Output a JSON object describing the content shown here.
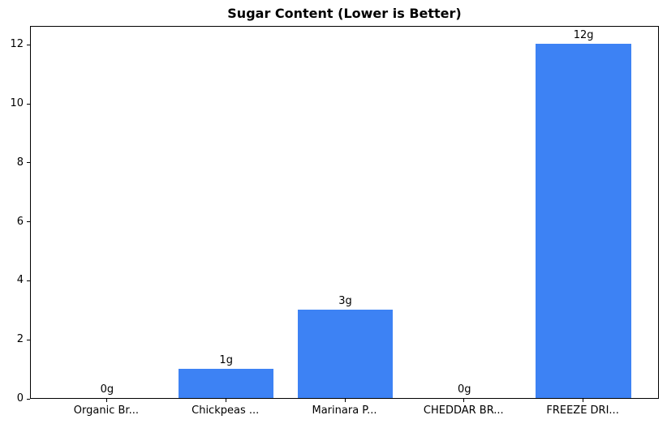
{
  "chart_data": {
    "type": "bar",
    "title": "Sugar Content (Lower is Better)",
    "categories": [
      "Organic Br...",
      "Chickpeas ...",
      "Marinara P...",
      "CHEDDAR BR...",
      "FREEZE DRI..."
    ],
    "values": [
      0,
      1,
      3,
      0,
      12
    ],
    "bar_labels": [
      "0g",
      "1g",
      "3g",
      "0g",
      "12g"
    ],
    "yticks": [
      0,
      2,
      4,
      6,
      8,
      10,
      12
    ],
    "ylim": [
      0,
      12.64
    ],
    "xlabel": "",
    "ylabel": "",
    "grid": false,
    "legend": false,
    "bar_color": "#3D82F4",
    "axis_color": "#000000",
    "background_color": "#FFFFFF"
  }
}
